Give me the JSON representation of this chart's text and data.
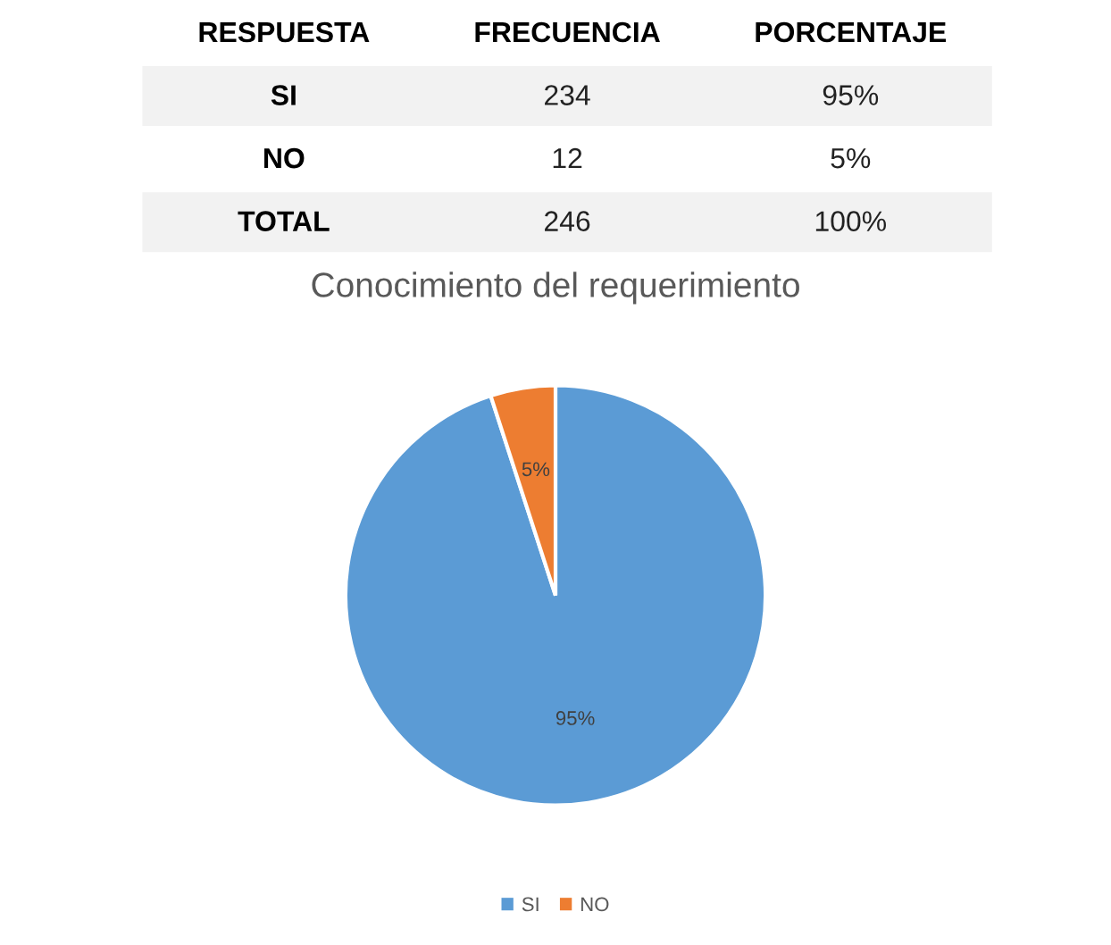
{
  "chart_data": [
    {
      "type": "other",
      "annotations": [
        "RESPUESTA",
        "FRECUENCIA",
        "PORCENTAJE",
        "SI",
        "234",
        "95%",
        "NO",
        "12",
        "5%",
        "TOTAL",
        "246",
        "100%"
      ]
    },
    {
      "type": "pie",
      "title": "Conocimiento del requerimiento",
      "categories": [
        "SI",
        "NO"
      ],
      "values": [
        95,
        5
      ],
      "colors": [
        "#5b9bd5",
        "#ed7d31"
      ],
      "value_labels": [
        "95%",
        "5%"
      ],
      "legend": "bottom"
    }
  ]
}
